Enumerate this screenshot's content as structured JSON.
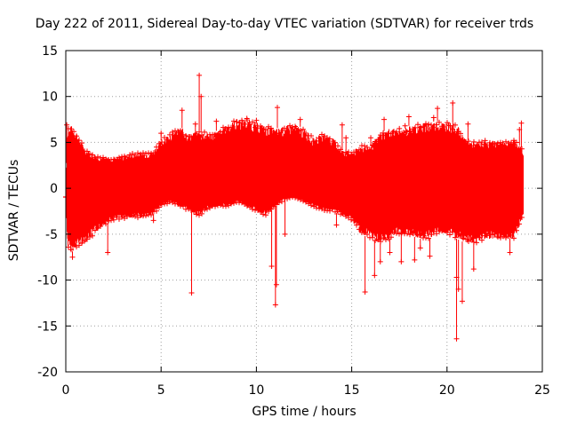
{
  "chart_data": {
    "type": "scatter",
    "title": "Day 222 of 2011, Sidereal Day-to-day VTEC variation (SDTVAR) for receiver trds",
    "xlabel": "GPS time / hours",
    "ylabel": "SDTVAR / TECUs",
    "xlim": [
      0,
      25
    ],
    "ylim": [
      -20,
      15
    ],
    "xticks": [
      "0",
      "5",
      "10",
      "15",
      "20",
      "25"
    ],
    "yticks": [
      "15",
      "10",
      "5",
      "0",
      "-5",
      "-10",
      "-15",
      "-20"
    ],
    "grid": true,
    "color": "#ff0000",
    "marker": "plus with error bars",
    "series": [
      {
        "name": "SDTVAR",
        "envelope": {
          "x": [
            0.0,
            0.1,
            0.3,
            0.5,
            1.0,
            1.5,
            2.0,
            2.5,
            3.0,
            3.5,
            4.0,
            4.5,
            5.0,
            5.5,
            6.0,
            6.5,
            7.0,
            7.5,
            8.0,
            8.5,
            9.0,
            9.5,
            10.0,
            10.5,
            11.0,
            11.5,
            12.0,
            12.5,
            13.0,
            13.5,
            14.0,
            14.5,
            15.0,
            15.5,
            16.0,
            16.5,
            17.0,
            17.5,
            18.0,
            18.5,
            19.0,
            19.5,
            20.0,
            20.5,
            21.0,
            21.5,
            22.0,
            22.5,
            23.0,
            23.5,
            24.0
          ],
          "upper": [
            -1.0,
            6.5,
            6.8,
            6.5,
            4.3,
            3.7,
            3.4,
            3.4,
            3.6,
            3.8,
            3.9,
            4.0,
            5.2,
            6.2,
            6.7,
            6.0,
            6.2,
            6.1,
            6.3,
            7.0,
            7.6,
            7.5,
            7.2,
            6.8,
            6.5,
            6.8,
            7.0,
            6.5,
            5.5,
            6.0,
            5.5,
            4.2,
            4.0,
            4.7,
            4.6,
            6.0,
            6.6,
            6.3,
            6.8,
            7.0,
            7.2,
            7.3,
            7.3,
            7.0,
            5.3,
            5.0,
            5.1,
            5.2,
            5.2,
            5.4,
            4.2
          ],
          "lower": [
            -1.0,
            -6.5,
            -7.0,
            -6.5,
            -6.0,
            -5.0,
            -4.0,
            -3.5,
            -3.3,
            -3.2,
            -3.2,
            -3.0,
            -2.0,
            -1.5,
            -2.0,
            -2.5,
            -3.0,
            -2.2,
            -2.0,
            -2.0,
            -1.5,
            -2.0,
            -2.5,
            -3.0,
            -2.0,
            -1.2,
            -1.0,
            -1.5,
            -2.0,
            -2.5,
            -2.5,
            -3.0,
            -3.5,
            -5.0,
            -5.5,
            -6.0,
            -5.5,
            -5.0,
            -5.0,
            -5.5,
            -5.5,
            -5.0,
            -5.0,
            -5.5,
            -6.0,
            -6.0,
            -5.5,
            -5.5,
            -5.5,
            -5.5,
            -3.0
          ]
        },
        "spikes": [
          {
            "x": 0.05,
            "y": 6.9
          },
          {
            "x": 0.35,
            "y": -7.5
          },
          {
            "x": 2.2,
            "y": -7.0
          },
          {
            "x": 2.5,
            "y": 2.8
          },
          {
            "x": 4.6,
            "y": -3.5
          },
          {
            "x": 5.0,
            "y": 6.0
          },
          {
            "x": 6.1,
            "y": 8.5
          },
          {
            "x": 6.6,
            "y": -11.4
          },
          {
            "x": 6.8,
            "y": 7.0
          },
          {
            "x": 7.0,
            "y": 12.3
          },
          {
            "x": 7.1,
            "y": 10.0
          },
          {
            "x": 7.9,
            "y": 7.3
          },
          {
            "x": 9.5,
            "y": 7.6
          },
          {
            "x": 10.0,
            "y": 7.4
          },
          {
            "x": 10.8,
            "y": -8.5
          },
          {
            "x": 11.0,
            "y": -12.7
          },
          {
            "x": 11.05,
            "y": -10.5
          },
          {
            "x": 11.1,
            "y": 8.8
          },
          {
            "x": 11.5,
            "y": -5.0
          },
          {
            "x": 12.3,
            "y": 7.5
          },
          {
            "x": 14.2,
            "y": -4.0
          },
          {
            "x": 14.5,
            "y": 6.9
          },
          {
            "x": 14.7,
            "y": 5.5
          },
          {
            "x": 15.7,
            "y": -11.3
          },
          {
            "x": 16.0,
            "y": 5.5
          },
          {
            "x": 16.2,
            "y": -9.5
          },
          {
            "x": 16.5,
            "y": -8.0
          },
          {
            "x": 16.7,
            "y": 7.5
          },
          {
            "x": 17.0,
            "y": -7.0
          },
          {
            "x": 17.5,
            "y": 6.5
          },
          {
            "x": 17.6,
            "y": -8.0
          },
          {
            "x": 17.8,
            "y": 6.8
          },
          {
            "x": 18.0,
            "y": 7.8
          },
          {
            "x": 18.3,
            "y": -7.8
          },
          {
            "x": 18.6,
            "y": -6.5
          },
          {
            "x": 19.3,
            "y": 7.7
          },
          {
            "x": 19.1,
            "y": -7.4
          },
          {
            "x": 19.5,
            "y": 8.7
          },
          {
            "x": 20.3,
            "y": 9.3
          },
          {
            "x": 20.5,
            "y": -9.7
          },
          {
            "x": 20.5,
            "y": -16.4
          },
          {
            "x": 20.6,
            "y": -11.0
          },
          {
            "x": 20.8,
            "y": -12.3
          },
          {
            "x": 21.1,
            "y": 7.0
          },
          {
            "x": 21.4,
            "y": -8.8
          },
          {
            "x": 22.0,
            "y": 5.2
          },
          {
            "x": 23.3,
            "y": -7.0
          },
          {
            "x": 23.9,
            "y": 7.1
          },
          {
            "x": 23.8,
            "y": 6.4
          }
        ]
      }
    ]
  }
}
